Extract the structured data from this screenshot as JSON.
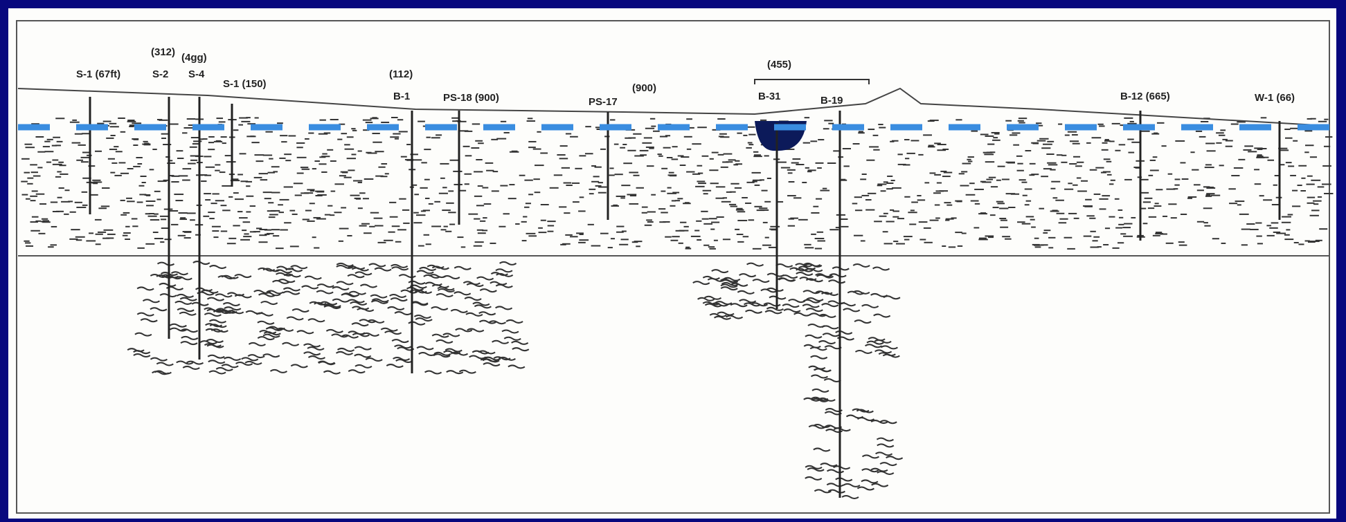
{
  "labels": [
    "S-1 (67ft)",
    "(312)",
    "(4gg)",
    "S-2",
    "S-4",
    "S-1 (150)",
    "(112)",
    "B-1",
    "PS-18 (900)",
    "PS-17",
    "(900)",
    "(455)",
    "B-31",
    "B-19",
    "B-12 (665)",
    "W-1 (66)"
  ]
}
